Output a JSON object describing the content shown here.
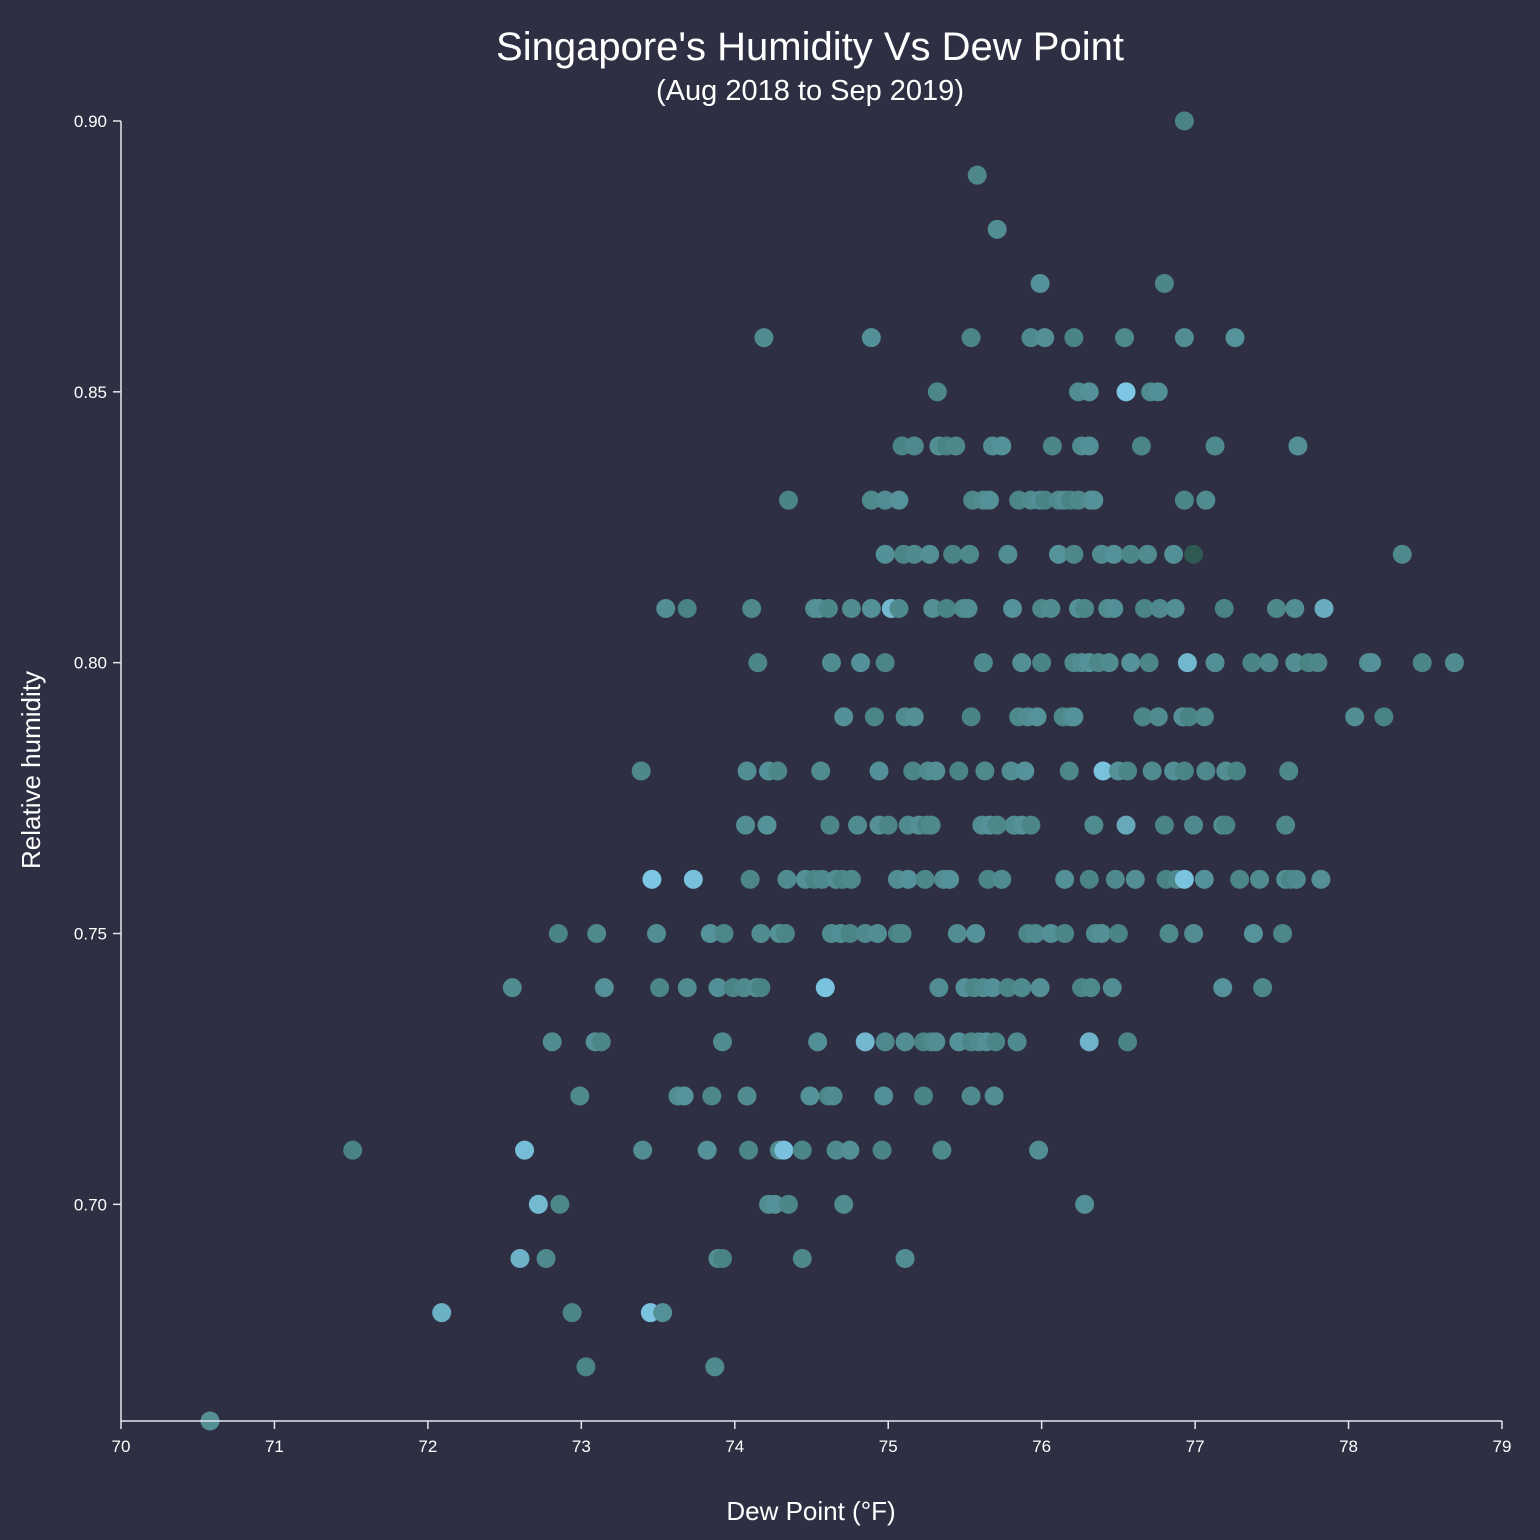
{
  "chart_data": {
    "type": "scatter",
    "title": "Singapore's Humidity Vs Dew Point",
    "subtitle": "(Aug 2018 to Sep 2019)",
    "xlabel": "Dew Point (°F)",
    "ylabel": "Relative humidity",
    "xlim": [
      70,
      79
    ],
    "ylim": [
      0.66,
      0.9
    ],
    "x_ticks": [
      "70",
      "71",
      "72",
      "73",
      "74",
      "75",
      "76",
      "77",
      "78",
      "79"
    ],
    "y_ticks": [
      "0.70",
      "0.75",
      "0.80",
      "0.85",
      "0.90"
    ],
    "grid": false,
    "colors": {
      "background": "#2e2f42",
      "point_dark": "#4a8384",
      "point_light": "#7ec8e6",
      "axis": "#e6e6ee",
      "text": "#ffffff"
    },
    "points": [
      [
        76.93,
        0.9
      ],
      [
        75.58,
        0.89
      ],
      [
        75.71,
        0.88
      ],
      [
        75.99,
        0.87
      ],
      [
        76.8,
        0.87
      ],
      [
        74.19,
        0.86
      ],
      [
        74.89,
        0.86
      ],
      [
        75.54,
        0.86
      ],
      [
        75.93,
        0.86
      ],
      [
        76.02,
        0.86
      ],
      [
        76.21,
        0.86
      ],
      [
        76.54,
        0.86
      ],
      [
        76.93,
        0.86
      ],
      [
        77.26,
        0.86
      ],
      [
        75.32,
        0.85
      ],
      [
        76.24,
        0.85
      ],
      [
        76.31,
        0.85
      ],
      [
        76.55,
        0.85
      ],
      [
        76.71,
        0.85
      ],
      [
        76.76,
        0.85
      ],
      [
        75.09,
        0.84
      ],
      [
        75.17,
        0.84
      ],
      [
        75.33,
        0.84
      ],
      [
        75.38,
        0.84
      ],
      [
        75.44,
        0.84
      ],
      [
        75.68,
        0.84
      ],
      [
        75.74,
        0.84
      ],
      [
        76.07,
        0.84
      ],
      [
        76.26,
        0.84
      ],
      [
        76.31,
        0.84
      ],
      [
        76.65,
        0.84
      ],
      [
        77.13,
        0.84
      ],
      [
        77.67,
        0.84
      ],
      [
        74.35,
        0.83
      ],
      [
        74.89,
        0.83
      ],
      [
        74.98,
        0.83
      ],
      [
        75.07,
        0.83
      ],
      [
        75.55,
        0.83
      ],
      [
        75.62,
        0.83
      ],
      [
        75.66,
        0.83
      ],
      [
        75.85,
        0.83
      ],
      [
        75.93,
        0.83
      ],
      [
        75.99,
        0.83
      ],
      [
        76.02,
        0.83
      ],
      [
        76.11,
        0.83
      ],
      [
        76.15,
        0.83
      ],
      [
        76.19,
        0.83
      ],
      [
        76.24,
        0.83
      ],
      [
        76.32,
        0.83
      ],
      [
        76.34,
        0.83
      ],
      [
        76.93,
        0.83
      ],
      [
        77.07,
        0.83
      ],
      [
        74.98,
        0.82
      ],
      [
        75.1,
        0.82
      ],
      [
        75.17,
        0.82
      ],
      [
        75.27,
        0.82
      ],
      [
        75.42,
        0.82
      ],
      [
        75.53,
        0.82
      ],
      [
        75.78,
        0.82
      ],
      [
        76.11,
        0.82
      ],
      [
        76.21,
        0.82
      ],
      [
        76.39,
        0.82
      ],
      [
        76.47,
        0.82
      ],
      [
        76.58,
        0.82
      ],
      [
        76.69,
        0.82
      ],
      [
        76.86,
        0.82
      ],
      [
        76.99,
        0.82
      ],
      [
        78.35,
        0.82
      ],
      [
        73.55,
        0.81
      ],
      [
        73.69,
        0.81
      ],
      [
        74.11,
        0.81
      ],
      [
        74.52,
        0.81
      ],
      [
        74.55,
        0.81
      ],
      [
        74.61,
        0.81
      ],
      [
        74.76,
        0.81
      ],
      [
        74.89,
        0.81
      ],
      [
        75.02,
        0.81
      ],
      [
        75.07,
        0.81
      ],
      [
        75.29,
        0.81
      ],
      [
        75.38,
        0.81
      ],
      [
        75.49,
        0.81
      ],
      [
        75.52,
        0.81
      ],
      [
        75.81,
        0.81
      ],
      [
        76.0,
        0.81
      ],
      [
        76.06,
        0.81
      ],
      [
        76.24,
        0.81
      ],
      [
        76.28,
        0.81
      ],
      [
        76.43,
        0.81
      ],
      [
        76.47,
        0.81
      ],
      [
        76.67,
        0.81
      ],
      [
        76.77,
        0.81
      ],
      [
        76.87,
        0.81
      ],
      [
        77.19,
        0.81
      ],
      [
        77.53,
        0.81
      ],
      [
        77.65,
        0.81
      ],
      [
        77.84,
        0.81
      ],
      [
        74.15,
        0.8
      ],
      [
        74.63,
        0.8
      ],
      [
        74.82,
        0.8
      ],
      [
        74.98,
        0.8
      ],
      [
        75.62,
        0.8
      ],
      [
        75.87,
        0.8
      ],
      [
        76.0,
        0.8
      ],
      [
        76.21,
        0.8
      ],
      [
        76.26,
        0.8
      ],
      [
        76.31,
        0.8
      ],
      [
        76.37,
        0.8
      ],
      [
        76.44,
        0.8
      ],
      [
        76.58,
        0.8
      ],
      [
        76.7,
        0.8
      ],
      [
        76.95,
        0.8
      ],
      [
        77.13,
        0.8
      ],
      [
        77.37,
        0.8
      ],
      [
        77.48,
        0.8
      ],
      [
        77.65,
        0.8
      ],
      [
        77.74,
        0.8
      ],
      [
        77.8,
        0.8
      ],
      [
        78.13,
        0.8
      ],
      [
        78.15,
        0.8
      ],
      [
        78.48,
        0.8
      ],
      [
        78.69,
        0.8
      ],
      [
        74.71,
        0.79
      ],
      [
        74.91,
        0.79
      ],
      [
        75.11,
        0.79
      ],
      [
        75.17,
        0.79
      ],
      [
        75.54,
        0.79
      ],
      [
        75.85,
        0.79
      ],
      [
        75.91,
        0.79
      ],
      [
        75.97,
        0.79
      ],
      [
        76.14,
        0.79
      ],
      [
        76.19,
        0.79
      ],
      [
        76.21,
        0.79
      ],
      [
        76.66,
        0.79
      ],
      [
        76.76,
        0.79
      ],
      [
        76.92,
        0.79
      ],
      [
        76.96,
        0.79
      ],
      [
        77.06,
        0.79
      ],
      [
        78.04,
        0.79
      ],
      [
        78.23,
        0.79
      ],
      [
        73.39,
        0.78
      ],
      [
        74.08,
        0.78
      ],
      [
        74.22,
        0.78
      ],
      [
        74.28,
        0.78
      ],
      [
        74.56,
        0.78
      ],
      [
        74.94,
        0.78
      ],
      [
        75.16,
        0.78
      ],
      [
        75.26,
        0.78
      ],
      [
        75.31,
        0.78
      ],
      [
        75.46,
        0.78
      ],
      [
        75.63,
        0.78
      ],
      [
        75.8,
        0.78
      ],
      [
        75.89,
        0.78
      ],
      [
        76.18,
        0.78
      ],
      [
        76.4,
        0.78
      ],
      [
        76.5,
        0.78
      ],
      [
        76.56,
        0.78
      ],
      [
        76.72,
        0.78
      ],
      [
        76.86,
        0.78
      ],
      [
        76.93,
        0.78
      ],
      [
        77.07,
        0.78
      ],
      [
        77.2,
        0.78
      ],
      [
        77.27,
        0.78
      ],
      [
        77.61,
        0.78
      ],
      [
        74.07,
        0.77
      ],
      [
        74.21,
        0.77
      ],
      [
        74.62,
        0.77
      ],
      [
        74.8,
        0.77
      ],
      [
        74.94,
        0.77
      ],
      [
        75.0,
        0.77
      ],
      [
        75.13,
        0.77
      ],
      [
        75.2,
        0.77
      ],
      [
        75.25,
        0.77
      ],
      [
        75.28,
        0.77
      ],
      [
        75.61,
        0.77
      ],
      [
        75.66,
        0.77
      ],
      [
        75.71,
        0.77
      ],
      [
        75.82,
        0.77
      ],
      [
        75.87,
        0.77
      ],
      [
        75.93,
        0.77
      ],
      [
        76.34,
        0.77
      ],
      [
        76.55,
        0.77
      ],
      [
        76.8,
        0.77
      ],
      [
        76.99,
        0.77
      ],
      [
        77.18,
        0.77
      ],
      [
        77.2,
        0.77
      ],
      [
        77.59,
        0.77
      ],
      [
        73.46,
        0.76
      ],
      [
        73.73,
        0.76
      ],
      [
        74.1,
        0.76
      ],
      [
        74.34,
        0.76
      ],
      [
        74.46,
        0.76
      ],
      [
        74.52,
        0.76
      ],
      [
        74.57,
        0.76
      ],
      [
        74.66,
        0.76
      ],
      [
        74.7,
        0.76
      ],
      [
        74.76,
        0.76
      ],
      [
        75.06,
        0.76
      ],
      [
        75.13,
        0.76
      ],
      [
        75.24,
        0.76
      ],
      [
        75.36,
        0.76
      ],
      [
        75.4,
        0.76
      ],
      [
        75.65,
        0.76
      ],
      [
        75.74,
        0.76
      ],
      [
        76.15,
        0.76
      ],
      [
        76.31,
        0.76
      ],
      [
        76.48,
        0.76
      ],
      [
        76.61,
        0.76
      ],
      [
        76.81,
        0.76
      ],
      [
        76.88,
        0.76
      ],
      [
        76.93,
        0.76
      ],
      [
        77.06,
        0.76
      ],
      [
        77.29,
        0.76
      ],
      [
        77.42,
        0.76
      ],
      [
        77.59,
        0.76
      ],
      [
        77.62,
        0.76
      ],
      [
        77.66,
        0.76
      ],
      [
        77.82,
        0.76
      ],
      [
        72.85,
        0.75
      ],
      [
        73.1,
        0.75
      ],
      [
        73.49,
        0.75
      ],
      [
        73.84,
        0.75
      ],
      [
        73.93,
        0.75
      ],
      [
        74.17,
        0.75
      ],
      [
        74.29,
        0.75
      ],
      [
        74.33,
        0.75
      ],
      [
        74.63,
        0.75
      ],
      [
        74.69,
        0.75
      ],
      [
        74.75,
        0.75
      ],
      [
        74.85,
        0.75
      ],
      [
        74.93,
        0.75
      ],
      [
        75.06,
        0.75
      ],
      [
        75.09,
        0.75
      ],
      [
        75.45,
        0.75
      ],
      [
        75.57,
        0.75
      ],
      [
        75.91,
        0.75
      ],
      [
        75.96,
        0.75
      ],
      [
        76.06,
        0.75
      ],
      [
        76.15,
        0.75
      ],
      [
        76.35,
        0.75
      ],
      [
        76.39,
        0.75
      ],
      [
        76.5,
        0.75
      ],
      [
        76.83,
        0.75
      ],
      [
        76.99,
        0.75
      ],
      [
        77.38,
        0.75
      ],
      [
        77.57,
        0.75
      ],
      [
        72.55,
        0.74
      ],
      [
        73.15,
        0.74
      ],
      [
        73.51,
        0.74
      ],
      [
        73.69,
        0.74
      ],
      [
        73.89,
        0.74
      ],
      [
        73.99,
        0.74
      ],
      [
        74.06,
        0.74
      ],
      [
        74.14,
        0.74
      ],
      [
        74.17,
        0.74
      ],
      [
        74.59,
        0.74
      ],
      [
        75.33,
        0.74
      ],
      [
        75.5,
        0.74
      ],
      [
        75.56,
        0.74
      ],
      [
        75.62,
        0.74
      ],
      [
        75.68,
        0.74
      ],
      [
        75.78,
        0.74
      ],
      [
        75.87,
        0.74
      ],
      [
        75.99,
        0.74
      ],
      [
        76.26,
        0.74
      ],
      [
        76.32,
        0.74
      ],
      [
        76.46,
        0.74
      ],
      [
        77.18,
        0.74
      ],
      [
        77.44,
        0.74
      ],
      [
        72.81,
        0.73
      ],
      [
        73.09,
        0.73
      ],
      [
        73.13,
        0.73
      ],
      [
        73.92,
        0.73
      ],
      [
        74.54,
        0.73
      ],
      [
        74.85,
        0.73
      ],
      [
        74.98,
        0.73
      ],
      [
        75.11,
        0.73
      ],
      [
        75.23,
        0.73
      ],
      [
        75.28,
        0.73
      ],
      [
        75.31,
        0.73
      ],
      [
        75.46,
        0.73
      ],
      [
        75.54,
        0.73
      ],
      [
        75.59,
        0.73
      ],
      [
        75.64,
        0.73
      ],
      [
        75.7,
        0.73
      ],
      [
        75.84,
        0.73
      ],
      [
        76.31,
        0.73
      ],
      [
        76.56,
        0.73
      ],
      [
        72.99,
        0.72
      ],
      [
        73.63,
        0.72
      ],
      [
        73.67,
        0.72
      ],
      [
        73.85,
        0.72
      ],
      [
        74.08,
        0.72
      ],
      [
        74.49,
        0.72
      ],
      [
        74.61,
        0.72
      ],
      [
        74.64,
        0.72
      ],
      [
        74.97,
        0.72
      ],
      [
        75.23,
        0.72
      ],
      [
        75.54,
        0.72
      ],
      [
        75.69,
        0.72
      ],
      [
        71.51,
        0.71
      ],
      [
        72.63,
        0.71
      ],
      [
        73.4,
        0.71
      ],
      [
        73.82,
        0.71
      ],
      [
        74.09,
        0.71
      ],
      [
        74.29,
        0.71
      ],
      [
        74.32,
        0.71
      ],
      [
        74.44,
        0.71
      ],
      [
        74.66,
        0.71
      ],
      [
        74.75,
        0.71
      ],
      [
        74.96,
        0.71
      ],
      [
        75.35,
        0.71
      ],
      [
        75.98,
        0.71
      ],
      [
        72.72,
        0.7
      ],
      [
        72.86,
        0.7
      ],
      [
        74.22,
        0.7
      ],
      [
        74.26,
        0.7
      ],
      [
        74.35,
        0.7
      ],
      [
        74.71,
        0.7
      ],
      [
        76.28,
        0.7
      ],
      [
        72.6,
        0.69
      ],
      [
        72.77,
        0.69
      ],
      [
        73.89,
        0.69
      ],
      [
        73.92,
        0.69
      ],
      [
        74.44,
        0.69
      ],
      [
        75.11,
        0.69
      ],
      [
        72.09,
        0.68
      ],
      [
        72.94,
        0.68
      ],
      [
        73.45,
        0.68
      ],
      [
        73.53,
        0.68
      ],
      [
        73.03,
        0.67
      ],
      [
        73.87,
        0.67
      ],
      [
        70.58,
        0.66
      ]
    ],
    "light_points": [
      [
        73.46,
        0.76
      ],
      [
        73.73,
        0.76
      ],
      [
        74.59,
        0.74
      ],
      [
        76.31,
        0.73
      ],
      [
        76.55,
        0.85
      ],
      [
        75.59,
        0.75
      ],
      [
        76.93,
        0.76
      ],
      [
        76.55,
        0.77
      ],
      [
        74.85,
        0.73
      ],
      [
        74.32,
        0.71
      ],
      [
        72.63,
        0.71
      ],
      [
        72.72,
        0.7
      ],
      [
        72.6,
        0.69
      ],
      [
        72.09,
        0.68
      ],
      [
        73.45,
        0.68
      ],
      [
        75.02,
        0.81
      ],
      [
        76.4,
        0.78
      ],
      [
        76.95,
        0.8
      ],
      [
        77.84,
        0.81
      ]
    ],
    "dark_points": [
      [
        76.99,
        0.82
      ]
    ]
  }
}
